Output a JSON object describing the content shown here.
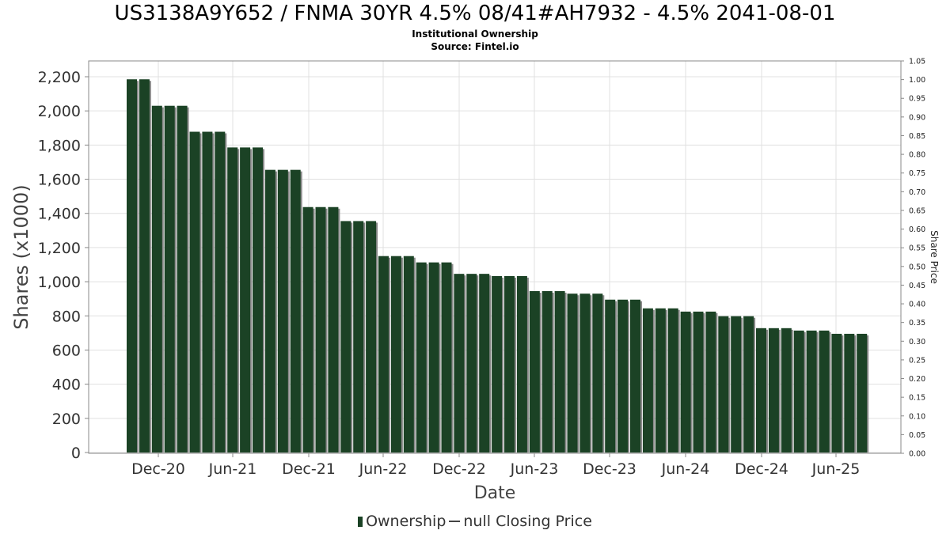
{
  "header": {
    "title": "US3138A9Y652 / FNMA 30YR 4.5% 08/41#AH7932 - 4.5% 2041-08-01",
    "subtitle": "Institutional Ownership",
    "source": "Source: Fintel.io"
  },
  "legend": {
    "ownership": "Ownership",
    "price": "null Closing Price"
  },
  "colors": {
    "bar": "#1b4225",
    "bar_shadow": "#8a8a8a",
    "grid": "#e0e0e0"
  },
  "chart_data": {
    "type": "bar",
    "xlabel": "Date",
    "ylabel": "Shares (x1000)",
    "y2label": "Share Price",
    "ylim": [
      0,
      2300
    ],
    "y_ticks": [
      0,
      200,
      400,
      600,
      800,
      1000,
      1200,
      1400,
      1600,
      1800,
      2000,
      2200
    ],
    "y_tick_labels": [
      "0",
      "200",
      "400",
      "600",
      "800",
      "1,000",
      "1,200",
      "1,400",
      "1,600",
      "1,800",
      "2,000",
      "2,200"
    ],
    "y2lim": [
      0,
      1.05
    ],
    "y2_tick_labels": [
      "0.00",
      "0.05",
      "0.10",
      "0.15",
      "0.20",
      "0.25",
      "0.30",
      "0.35",
      "0.40",
      "0.45",
      "0.50",
      "0.55",
      "0.60",
      "0.65",
      "0.70",
      "0.75",
      "0.80",
      "0.85",
      "0.90",
      "0.95",
      "1.00",
      "1.05"
    ],
    "x_ticks": [
      "Dec-20",
      "Jun-21",
      "Dec-21",
      "Jun-22",
      "Dec-22",
      "Jun-23",
      "Dec-23",
      "Jun-24",
      "Dec-24",
      "Jun-25"
    ],
    "grid": true,
    "legend_position": "bottom",
    "series": [
      {
        "name": "Ownership",
        "values": [
          2185,
          2185,
          2030,
          2030,
          2030,
          1878,
          1878,
          1878,
          1786,
          1786,
          1786,
          1655,
          1655,
          1655,
          1437,
          1437,
          1437,
          1355,
          1355,
          1355,
          1150,
          1150,
          1150,
          1113,
          1113,
          1113,
          1046,
          1046,
          1046,
          1033,
          1033,
          1033,
          945,
          945,
          945,
          930,
          930,
          930,
          895,
          895,
          895,
          844,
          844,
          844,
          825,
          825,
          825,
          798,
          798,
          798,
          728,
          728,
          728,
          714,
          714,
          714,
          695,
          695,
          695
        ]
      }
    ]
  }
}
